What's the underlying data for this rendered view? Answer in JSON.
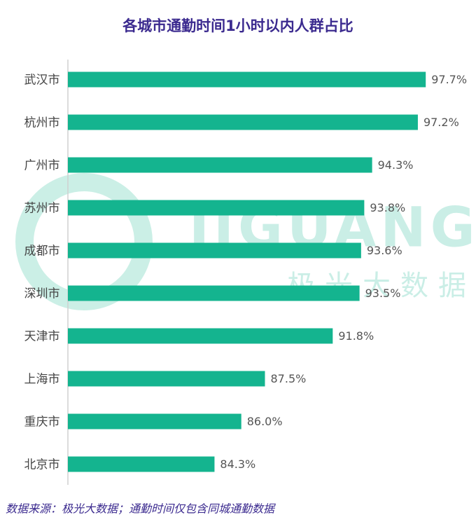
{
  "chart_data": {
    "type": "bar",
    "orientation": "horizontal",
    "title": "各城市通勤时间1小时以内人群占比",
    "categories": [
      "武汉市",
      "杭州市",
      "广州市",
      "苏州市",
      "成都市",
      "深圳市",
      "天津市",
      "上海市",
      "重庆市",
      "北京市"
    ],
    "values": [
      97.7,
      97.2,
      94.3,
      93.8,
      93.6,
      93.5,
      91.8,
      87.5,
      86.0,
      84.3
    ],
    "value_labels": [
      "97.7%",
      "97.2%",
      "94.3%",
      "93.8%",
      "93.6%",
      "93.5%",
      "91.8%",
      "87.5%",
      "86.0%",
      "84.3%"
    ],
    "color": "#14b48f",
    "xlim": [
      75,
      100
    ],
    "watermark": [
      "JIGUANG",
      "极光大数据"
    ],
    "source": "数据来源：极光大数据；通勤时间仅包含同城通勤数据"
  }
}
